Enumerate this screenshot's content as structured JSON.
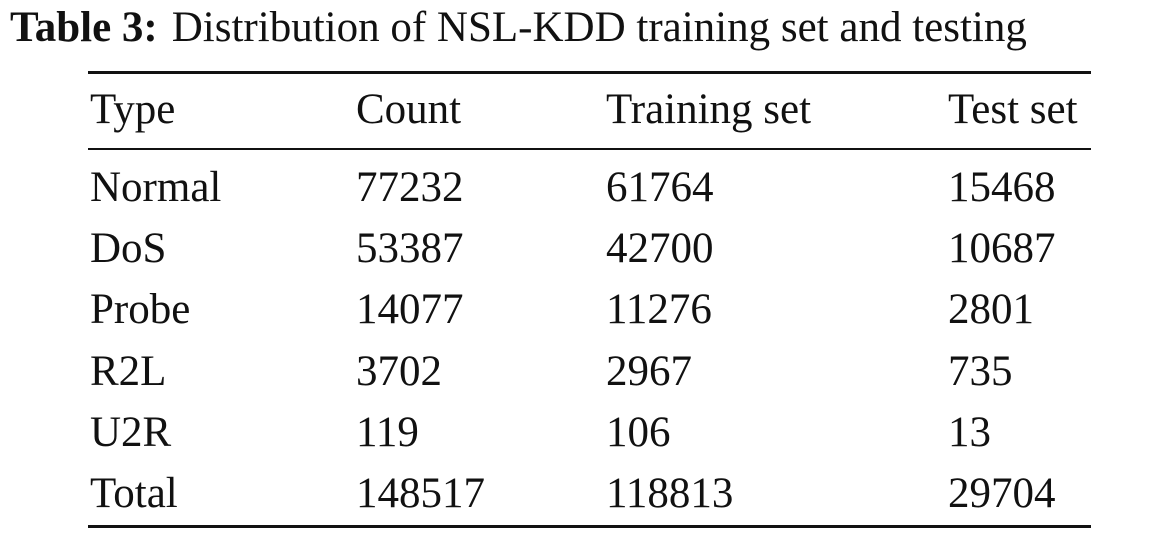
{
  "caption": {
    "label": "Table 3:",
    "text": "Distribution of NSL-KDD training set and testing"
  },
  "table": {
    "header": [
      "Type",
      "Count",
      "Training set",
      "Test set"
    ],
    "rows": [
      [
        "Normal",
        77232,
        61764,
        15468
      ],
      [
        "DoS",
        53387,
        42700,
        10687
      ],
      [
        "Probe",
        14077,
        11276,
        2801
      ],
      [
        "R2L",
        3702,
        2967,
        735
      ],
      [
        "U2R",
        119,
        106,
        13
      ],
      [
        "Total",
        148517,
        118813,
        29704
      ]
    ]
  }
}
